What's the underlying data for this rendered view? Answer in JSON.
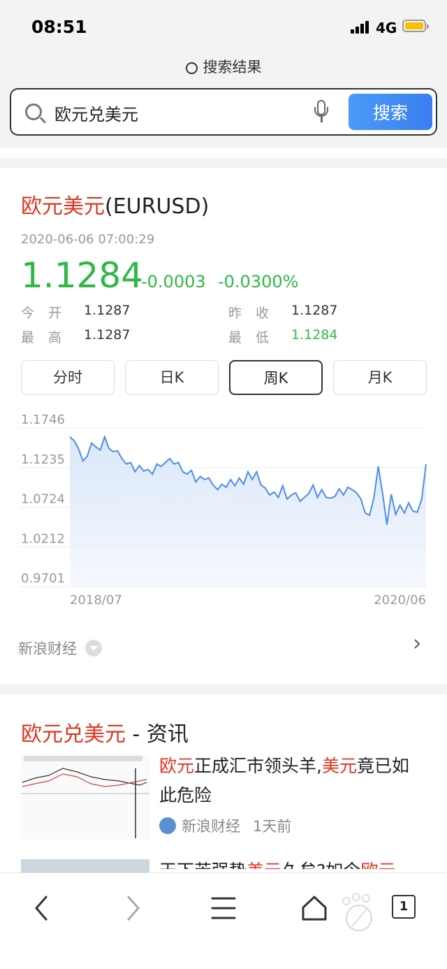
{
  "status": {
    "time": "08:51",
    "network": "4G"
  },
  "header": {
    "label": "搜索结果",
    "search_value": "欧元兑美元",
    "search_button": "搜索"
  },
  "quote": {
    "title_highlight": "欧元美元",
    "title_rest": "(EURUSD)",
    "timestamp": "2020-06-06 07:00:29",
    "price": "1.1284",
    "change": "-0.0003",
    "change_pct": "-0.0300%",
    "stats": [
      {
        "label": "今开",
        "value": "1.1287"
      },
      {
        "label": "昨收",
        "value": "1.1287"
      },
      {
        "label": "最高",
        "value": "1.1287"
      },
      {
        "label": "最低",
        "value": "1.1284"
      }
    ],
    "tabs": [
      {
        "label": "分时",
        "active": false
      },
      {
        "label": "日K",
        "active": false
      },
      {
        "label": "周K",
        "active": true
      },
      {
        "label": "月K",
        "active": false
      }
    ],
    "source": "新浪财经"
  },
  "chart_data": {
    "type": "area",
    "y_ticks": [
      "1.1746",
      "1.1235",
      "1.0724",
      "1.0212",
      "0.9701"
    ],
    "x_ticks": [
      "2018/07",
      "2020/06"
    ],
    "ylim": [
      0.9701,
      1.1746
    ],
    "values": [
      1.163,
      1.158,
      1.148,
      1.132,
      1.138,
      1.155,
      1.15,
      1.146,
      1.163,
      1.148,
      1.144,
      1.145,
      1.135,
      1.128,
      1.13,
      1.118,
      1.126,
      1.119,
      1.121,
      1.115,
      1.128,
      1.125,
      1.13,
      1.135,
      1.128,
      1.13,
      1.118,
      1.115,
      1.12,
      1.105,
      1.112,
      1.108,
      1.11,
      1.101,
      1.095,
      1.102,
      1.098,
      1.108,
      1.1,
      1.11,
      1.102,
      1.118,
      1.108,
      1.118,
      1.101,
      1.097,
      1.088,
      1.092,
      1.085,
      1.1,
      1.083,
      1.088,
      1.091,
      1.08,
      1.085,
      1.09,
      1.101,
      1.085,
      1.095,
      1.085,
      1.084,
      1.086,
      1.096,
      1.088,
      1.098,
      1.095,
      1.091,
      1.083,
      1.065,
      1.062,
      1.085,
      1.125,
      1.09,
      1.05,
      1.089,
      1.063,
      1.075,
      1.065,
      1.078,
      1.067,
      1.066,
      1.083,
      1.128
    ],
    "line_color": "#4a8fe8",
    "fill_color": "#dfeafb",
    "grid": true
  },
  "news": {
    "title_highlight": "欧元兑美元",
    "title_rest": " - 资讯",
    "items": [
      {
        "headline_parts": [
          {
            "text": "欧元",
            "hl": true
          },
          {
            "text": "正成汇市领头羊,",
            "hl": false
          },
          {
            "text": "美元",
            "hl": true
          },
          {
            "text": "竟已如此危险",
            "hl": false
          }
        ],
        "source": "新浪财经",
        "time": "1天前"
      },
      {
        "headline_parts": [
          {
            "text": "天下苦强势",
            "hl": false
          },
          {
            "text": "美元",
            "hl": true
          },
          {
            "text": "久矣?如今",
            "hl": false
          },
          {
            "text": "欧元",
            "hl": true
          }
        ]
      }
    ]
  },
  "nav": {
    "tab_count": "1",
    "icons": [
      "back-icon",
      "forward-icon",
      "menu-icon",
      "home-icon",
      "tabs-icon"
    ]
  }
}
